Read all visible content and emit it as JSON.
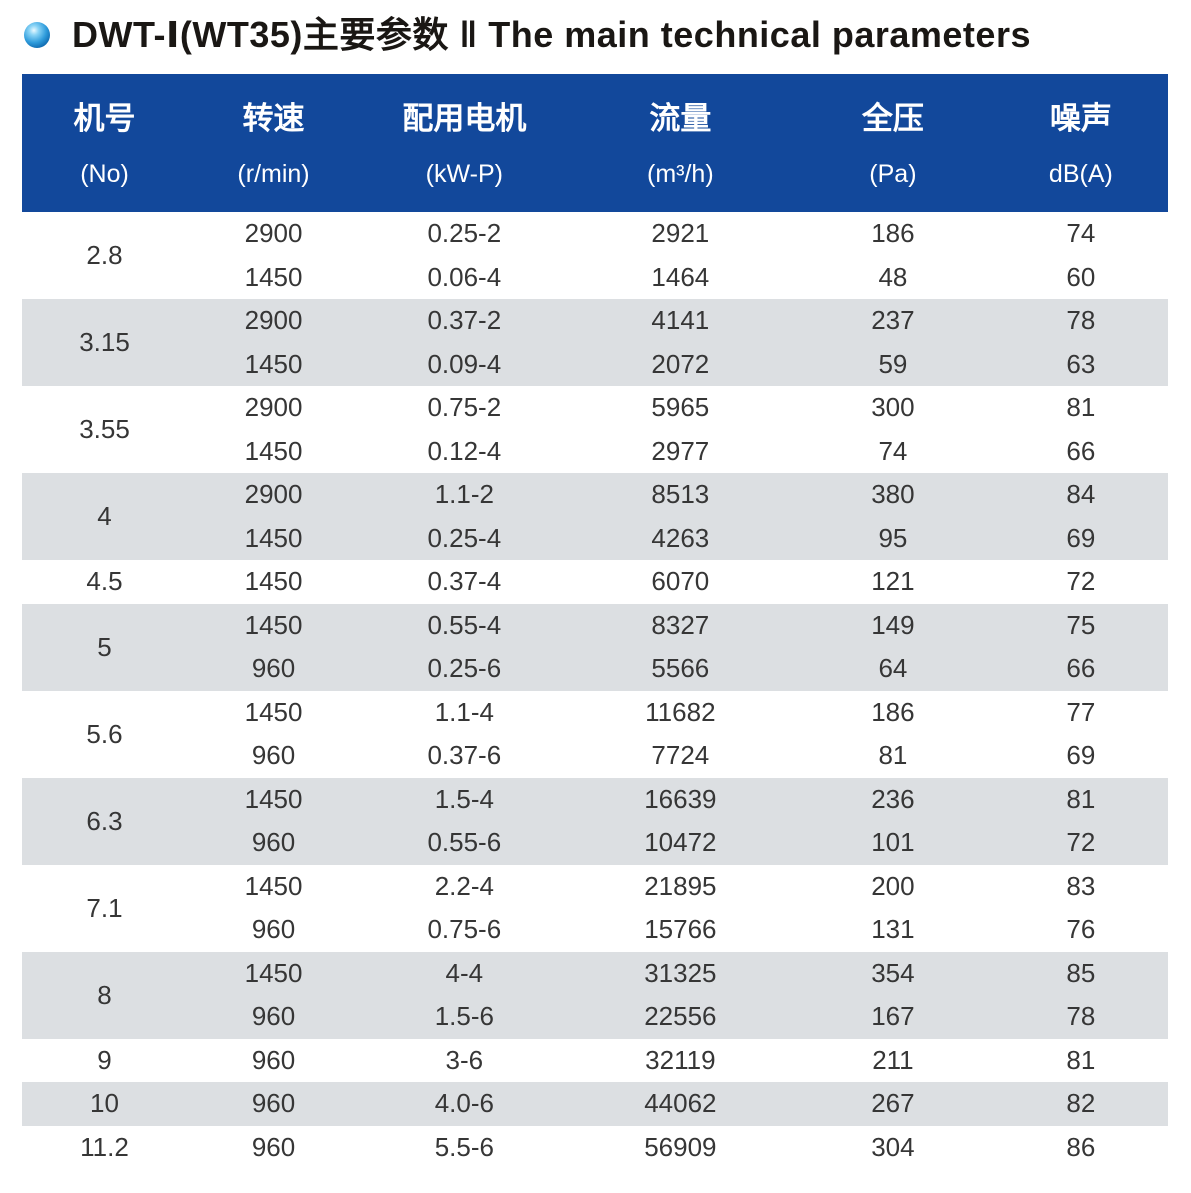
{
  "title": "DWT-Ⅰ(WT35)主要参数 ‖ The main technical parameters",
  "colors": {
    "header_bg": "#12489B",
    "row_alt_bg": "#DCDFE2",
    "text": "#363636",
    "bullet_blue": "#2E9BDB",
    "page_bg": "#FFFFFF"
  },
  "icons": {
    "bullet": "glossy-blue-sphere-icon"
  },
  "table": {
    "columns": [
      {
        "label": "机号",
        "unit": "(No)"
      },
      {
        "label": "转速",
        "unit": "(r/min)"
      },
      {
        "label": "配用电机",
        "unit": "(kW-P)"
      },
      {
        "label": "流量",
        "unit": "(m³/h)"
      },
      {
        "label": "全压",
        "unit": "(Pa)"
      },
      {
        "label": "噪声",
        "unit": "dB(A)"
      }
    ],
    "groups": [
      {
        "no": "2.8",
        "rows": [
          [
            "2900",
            "0.25-2",
            "2921",
            "186",
            "74"
          ],
          [
            "1450",
            "0.06-4",
            "1464",
            "48",
            "60"
          ]
        ]
      },
      {
        "no": "3.15",
        "rows": [
          [
            "2900",
            "0.37-2",
            "4141",
            "237",
            "78"
          ],
          [
            "1450",
            "0.09-4",
            "2072",
            "59",
            "63"
          ]
        ]
      },
      {
        "no": "3.55",
        "rows": [
          [
            "2900",
            "0.75-2",
            "5965",
            "300",
            "81"
          ],
          [
            "1450",
            "0.12-4",
            "2977",
            "74",
            "66"
          ]
        ]
      },
      {
        "no": "4",
        "rows": [
          [
            "2900",
            "1.1-2",
            "8513",
            "380",
            "84"
          ],
          [
            "1450",
            "0.25-4",
            "4263",
            "95",
            "69"
          ]
        ]
      },
      {
        "no": "4.5",
        "rows": [
          [
            "1450",
            "0.37-4",
            "6070",
            "121",
            "72"
          ]
        ]
      },
      {
        "no": "5",
        "rows": [
          [
            "1450",
            "0.55-4",
            "8327",
            "149",
            "75"
          ],
          [
            "960",
            "0.25-6",
            "5566",
            "64",
            "66"
          ]
        ]
      },
      {
        "no": "5.6",
        "rows": [
          [
            "1450",
            "1.1-4",
            "11682",
            "186",
            "77"
          ],
          [
            "960",
            "0.37-6",
            "7724",
            "81",
            "69"
          ]
        ]
      },
      {
        "no": "6.3",
        "rows": [
          [
            "1450",
            "1.5-4",
            "16639",
            "236",
            "81"
          ],
          [
            "960",
            "0.55-6",
            "10472",
            "101",
            "72"
          ]
        ]
      },
      {
        "no": "7.1",
        "rows": [
          [
            "1450",
            "2.2-4",
            "21895",
            "200",
            "83"
          ],
          [
            "960",
            "0.75-6",
            "15766",
            "131",
            "76"
          ]
        ]
      },
      {
        "no": "8",
        "rows": [
          [
            "1450",
            "4-4",
            "31325",
            "354",
            "85"
          ],
          [
            "960",
            "1.5-6",
            "22556",
            "167",
            "78"
          ]
        ]
      },
      {
        "no": "9",
        "rows": [
          [
            "960",
            "3-6",
            "32119",
            "211",
            "81"
          ]
        ]
      },
      {
        "no": "10",
        "rows": [
          [
            "960",
            "4.0-6",
            "44062",
            "267",
            "82"
          ]
        ]
      },
      {
        "no": "11.2",
        "rows": [
          [
            "960",
            "5.5-6",
            "56909",
            "304",
            "86"
          ]
        ]
      }
    ]
  }
}
